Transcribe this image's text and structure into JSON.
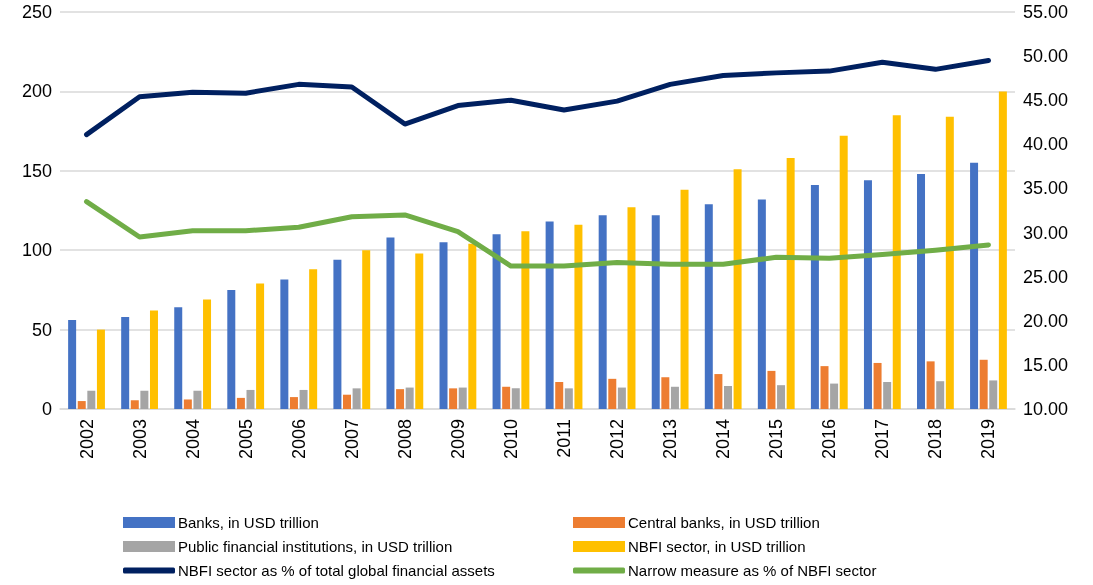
{
  "chart_data": {
    "type": "bar",
    "categories": [
      "2002",
      "2003",
      "2004",
      "2005",
      "2006",
      "2007",
      "2008",
      "2009",
      "2010",
      "2011",
      "2012",
      "2013",
      "2014",
      "2015",
      "2016",
      "2017",
      "2018",
      "2019"
    ],
    "series": [
      {
        "name": "Banks, in USD trillion",
        "color": "#4472c4",
        "values": [
          56,
          58,
          64,
          75,
          81.5,
          94,
          108,
          105,
          110,
          118,
          122,
          122,
          129,
          132,
          141,
          144,
          148,
          155
        ]
      },
      {
        "name": "Central banks, in USD trillion",
        "color": "#ed7d31",
        "values": [
          5,
          5.5,
          6,
          7,
          7.5,
          9,
          12.5,
          13,
          14,
          17,
          19,
          20,
          22,
          24,
          27,
          29,
          30,
          31
        ]
      },
      {
        "name": "Public financial institutions, in USD trillion",
        "color": "#a5a5a5",
        "values": [
          11.5,
          11.5,
          11.5,
          12,
          12,
          13,
          13.5,
          13.5,
          13,
          13,
          13.5,
          14,
          14.5,
          15,
          16,
          17,
          17.5,
          18
        ]
      },
      {
        "name": "NBFI sector, in USD trillion",
        "color": "#ffc000",
        "values": [
          50,
          62,
          69,
          79,
          88,
          100,
          98,
          104,
          112,
          116,
          127,
          138,
          151,
          158,
          172,
          185,
          184,
          200
        ]
      },
      {
        "name": "NBFI sector as % of total global financial assets",
        "color": "#002060",
        "type": "line",
        "axis": "y2",
        "values": [
          41.1,
          45.4,
          45.9,
          45.8,
          46.8,
          46.5,
          42.3,
          44.4,
          45.0,
          43.9,
          44.9,
          46.8,
          47.8,
          48.1,
          48.3,
          49.3,
          48.5,
          49.5
        ]
      },
      {
        "name": "Narrow measure as % of NBFI sector",
        "color": "#70ad47",
        "type": "line",
        "axis": "y2",
        "values": [
          33.5,
          29.5,
          30.2,
          30.2,
          30.6,
          31.8,
          32.0,
          30.1,
          26.2,
          26.2,
          26.6,
          26.4,
          26.4,
          27.2,
          27.1,
          27.5,
          28.0,
          28.6
        ]
      }
    ],
    "ylim": [
      0,
      250
    ],
    "yticks": [
      0,
      50,
      100,
      150,
      200,
      250
    ],
    "y2lim": [
      10,
      55
    ],
    "y2ticks": [
      {
        "value": 10,
        "label": "10.00"
      },
      {
        "value": 15,
        "label": "15.00"
      },
      {
        "value": 20,
        "label": "20.00"
      },
      {
        "value": 25,
        "label": "25.00"
      },
      {
        "value": 30,
        "label": "30.00"
      },
      {
        "value": 35,
        "label": "35.00"
      },
      {
        "value": 40,
        "label": "40.00"
      },
      {
        "value": 45,
        "label": "45.00"
      },
      {
        "value": 50,
        "label": "50.00"
      },
      {
        "value": 55,
        "label": "55.00"
      }
    ],
    "grid": "y",
    "legend": "bottom",
    "marker": "none",
    "line_style": "solid"
  }
}
